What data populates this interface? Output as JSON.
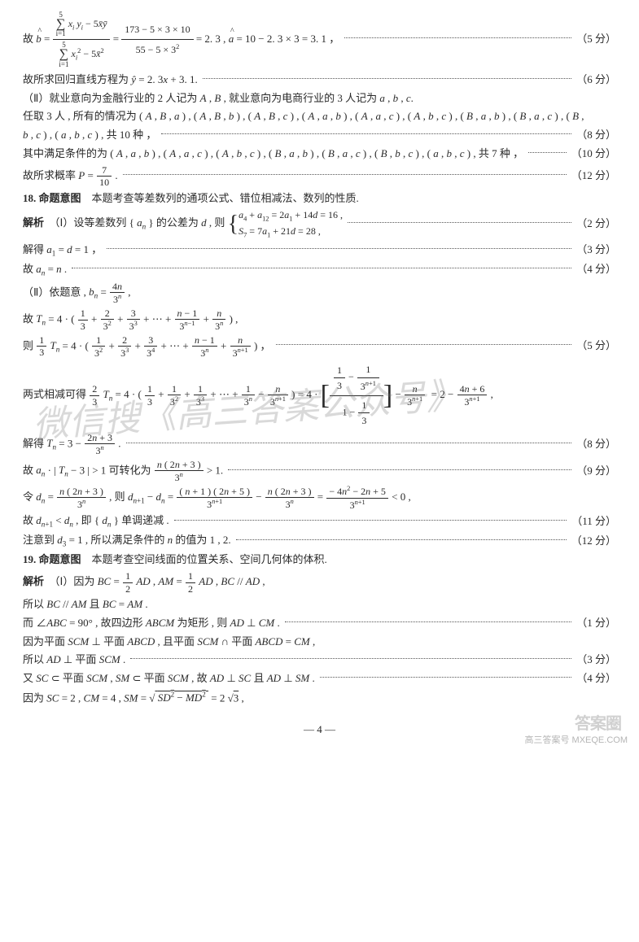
{
  "lines": [
    {
      "type": "formula_big",
      "score": "（5 分）",
      "left": "故 <span class='i hat'>b</span> = ",
      "numerator_l": "<span class='sum-block'><span class='top'>5</span><span class='sig'>∑</span><span class='bot'>i=1</span></span> <span class='i'>x<sub>i</sub> y<sub>i</sub></span> − 5<span class='i'>x̄ȳ</span>",
      "denominator_l": "<span class='sum-block'><span class='top'>5</span><span class='sig'>∑</span><span class='bot'>i=1</span></span> <span class='i'>x<sub>i</sub></span><sup>2</sup> − 5<span class='i'>x̄</span><sup>2</sup>",
      "mid": " = ",
      "numerator_r": "173 − 5 × 3 × 10",
      "denominator_r": "55 − 5 × 3<sup>2</sup>",
      "right": " = 2. 3 , <span class='i hat'>a</span> = 10 − 2. 3 × 3 = 3. 1 ，"
    },
    {
      "text": "故所求回归直线方程为 <span class='i'>ŷ</span> = 2. 3<span class='i'>x</span> + 3. 1.",
      "score": "（6 分）"
    },
    {
      "text": "（Ⅱ）就业意向为金融行业的 2 人记为 <span class='i'>A</span> , <span class='i'>B</span> , 就业意向为电商行业的 3 人记为 <span class='i'>a</span> , <span class='i'>b</span> , <span class='i'>c</span>."
    },
    {
      "text": "任取 3 人 , 所有的情况为 ( <span class='i'>A</span> , <span class='i'>B</span> , <span class='i'>a</span> ) , ( <span class='i'>A</span> , <span class='i'>B</span> , <span class='i'>b</span> ) , ( <span class='i'>A</span> , <span class='i'>B</span> , <span class='i'>c</span> ) , ( <span class='i'>A</span> , <span class='i'>a</span> , <span class='i'>b</span> ) , ( <span class='i'>A</span> , <span class='i'>a</span> , <span class='i'>c</span> ) , ( <span class='i'>A</span> , <span class='i'>b</span> , <span class='i'>c</span> ) , ( <span class='i'>B</span> , <span class='i'>a</span> , <span class='i'>b</span> ) , ( <span class='i'>B</span> , <span class='i'>a</span> , <span class='i'>c</span> ) , ( <span class='i'>B</span> ,"
    },
    {
      "text": "<span class='i'>b</span> , <span class='i'>c</span> ) , ( <span class='i'>a</span> , <span class='i'>b</span> , <span class='i'>c</span> ) , 共 10 种 ，",
      "score": "（8 分）"
    },
    {
      "text": "其中满足条件的为 ( <span class='i'>A</span> , <span class='i'>a</span> , <span class='i'>b</span> ) , ( <span class='i'>A</span> , <span class='i'>a</span> , <span class='i'>c</span> ) , ( <span class='i'>A</span> , <span class='i'>b</span> , <span class='i'>c</span> ) , ( <span class='i'>B</span> , <span class='i'>a</span> , <span class='i'>b</span> ) , ( <span class='i'>B</span> , <span class='i'>a</span> , <span class='i'>c</span> ) , ( <span class='i'>B</span> , <span class='i'>b</span> , <span class='i'>c</span> ) , ( <span class='i'>a</span> , <span class='i'>b</span> , <span class='i'>c</span> ) , 共 7 种 ，",
      "score": "（10 分）"
    },
    {
      "text": "故所求概率 <span class='i'>P</span> = <span class='frac'><span class='num'>7</span><span class='den'>10</span></span> .",
      "score": "（12 分）"
    },
    {
      "text": "<span class='qnum'>18. 命题意图</span>　本题考查等差数列的通项公式、错位相减法、数列的性质."
    },
    {
      "type": "cases",
      "pre": "<span class='bold'>解析</span>　（Ⅰ）设等差数列 { <span class='i'>a<sub>n</sub></span> } 的公差为 <span class='i'>d</span> , 则",
      "case1": "<span class='i'>a</span><sub>4</sub> + <span class='i'>a</span><sub>12</sub> = 2<span class='i'>a</span><sub>1</sub> + 14<span class='i'>d</span> = 16 ,",
      "case2": "<span class='i'>S</span><sub>7</sub> = 7<span class='i'>a</span><sub>1</sub> + 21<span class='i'>d</span> = 28 ,",
      "score": "（2 分）"
    },
    {
      "text": "解得 <span class='i'>a</span><sub>1</sub> = <span class='i'>d</span> = 1 ，",
      "score": "（3 分）"
    },
    {
      "text": "故 <span class='i'>a<sub>n</sub></span> = <span class='i'>n</span> .",
      "score": "（4 分）"
    },
    {
      "text": "（Ⅱ）依题意 , <span class='i'>b<sub>n</sub></span> = <span class='frac'><span class='num'>4<span class='i'>n</span></span><span class='den'>3<sup><span class='i'>n</span></sup></span></span> ,"
    },
    {
      "text": "故 <span class='i'>T<sub>n</sub></span> = 4 · ( <span class='frac'><span class='num'>1</span><span class='den'>3</span></span> + <span class='frac'><span class='num'>2</span><span class='den'>3<sup>2</sup></span></span> + <span class='frac'><span class='num'>3</span><span class='den'>3<sup>3</sup></span></span> + ⋯ + <span class='frac'><span class='num'><span class='i'>n</span> − 1</span><span class='den'>3<sup><span class='i'>n</span>−1</sup></span></span> + <span class='frac'><span class='num'><span class='i'>n</span></span><span class='den'>3<sup><span class='i'>n</span></sup></span></span> ) ,"
    },
    {
      "text": "则 <span class='frac'><span class='num'>1</span><span class='den'>3</span></span> <span class='i'>T<sub>n</sub></span> = 4 · ( <span class='frac'><span class='num'>1</span><span class='den'>3<sup>2</sup></span></span> + <span class='frac'><span class='num'>2</span><span class='den'>3<sup>3</sup></span></span> + <span class='frac'><span class='num'>3</span><span class='den'>3<sup>4</sup></span></span> + ⋯ + <span class='frac'><span class='num'><span class='i'>n</span> − 1</span><span class='den'>3<sup><span class='i'>n</span></sup></span></span> + <span class='frac'><span class='num'><span class='i'>n</span></span><span class='den'>3<sup><span class='i'>n</span>+1</sup></span></span> ) ，",
      "score": "（5 分）"
    },
    {
      "type": "bigbracket",
      "pre": "两式相减可得 <span class='frac'><span class='num'>2</span><span class='den'>3</span></span> <span class='i'>T<sub>n</sub></span> = 4 · ( <span class='frac'><span class='num'>1</span><span class='den'>3</span></span> + <span class='frac'><span class='num'>1</span><span class='den'>3<sup>2</sup></span></span> + <span class='frac'><span class='num'>1</span><span class='den'>3<sup>3</sup></span></span> + ⋯ + <span class='frac'><span class='num'>1</span><span class='den'>3<sup><span class='i'>n</span></sup></span></span> − <span class='frac'><span class='num'><span class='i'>n</span></span><span class='den'>3<sup><span class='i'>n</span>+1</sup></span></span> ) = 4 · ",
      "inner_num": "<span class='frac'><span class='num'>1</span><span class='den'>3</span></span> − <span class='frac'><span class='num'>1</span><span class='den'>3<sup><span class='i'>n</span>+1</sup></span></span>",
      "inner_den": "1 − <span class='frac'><span class='num'>1</span><span class='den'>3</span></span>",
      "post": " − <span class='frac'><span class='num'><span class='i'>n</span></span><span class='den'>3<sup><span class='i'>n</span>+1</sup></span></span> &nbsp;= 2 − <span class='frac'><span class='num'>4<span class='i'>n</span> + 6</span><span class='den'>3<sup><span class='i'>n</span>+1</sup></span></span> ,"
    },
    {
      "text": "解得 <span class='i'>T<sub>n</sub></span> = 3 − <span class='frac'><span class='num'>2<span class='i'>n</span> + 3</span><span class='den'>3<sup><span class='i'>n</span></sup></span></span> .",
      "score": "（8 分）"
    },
    {
      "text": "故 <span class='i'>a<sub>n</sub></span> · | <span class='i'>T<sub>n</sub></span> − 3 | > 1 可转化为 <span class='frac'><span class='num'><span class='i'>n</span> ( 2<span class='i'>n</span> + 3 )</span><span class='den'>3<sup><span class='i'>n</span></sup></span></span> > 1.",
      "score": "（9 分）"
    },
    {
      "text": "令 <span class='i'>d<sub>n</sub></span> = <span class='frac'><span class='num'><span class='i'>n</span> ( 2<span class='i'>n</span> + 3 )</span><span class='den'>3<sup><span class='i'>n</span></sup></span></span> , 则 <span class='i'>d</span><sub><span class='i'>n</span>+1</sub> − <span class='i'>d<sub>n</sub></span> = <span class='frac'><span class='num'>( <span class='i'>n</span> + 1 ) ( 2<span class='i'>n</span> + 5 )</span><span class='den'>3<sup><span class='i'>n</span>+1</sup></span></span> − <span class='frac'><span class='num'><span class='i'>n</span> ( 2<span class='i'>n</span> + 3 )</span><span class='den'>3<sup><span class='i'>n</span></sup></span></span> = <span class='frac'><span class='num'>− 4<span class='i'>n</span><sup>2</sup> − 2<span class='i'>n</span> + 5</span><span class='den'>3<sup><span class='i'>n</span>+1</sup></span></span> &lt; 0 ,"
    },
    {
      "text": "故 <span class='i'>d</span><sub><span class='i'>n</span>+1</sub> &lt; <span class='i'>d<sub>n</sub></span> , 即 { <span class='i'>d<sub>n</sub></span> } 单调递减 .",
      "score": "（11 分）"
    },
    {
      "text": "注意到 <span class='i'>d</span><sub>3</sub> = 1 , 所以满足条件的 <span class='i'>n</span> 的值为 1 , 2.",
      "score": "（12 分）"
    },
    {
      "text": "<span class='qnum'>19. 命题意图</span>　本题考查空间线面的位置关系、空间几何体的体积."
    },
    {
      "text": "<span class='bold'>解析</span>　（Ⅰ）因为 <span class='i'>BC</span> = <span class='frac'><span class='num'>1</span><span class='den'>2</span></span> <span class='i'>AD</span> , <span class='i'>AM</span> = <span class='frac'><span class='num'>1</span><span class='den'>2</span></span> <span class='i'>AD</span> , <span class='i'>BC</span> // <span class='i'>AD</span> ,"
    },
    {
      "text": "所以 <span class='i'>BC</span> // <span class='i'>AM</span> 且 <span class='i'>BC</span> = <span class='i'>AM</span> ."
    },
    {
      "text": "而 ∠<span class='i'>ABC</span> = 90° , 故四边形 <span class='i'>ABCM</span> 为矩形 , 则 <span class='i'>AD</span> ⊥ <span class='i'>CM</span> .",
      "score": "（1 分）"
    },
    {
      "text": "因为平面 <span class='i'>SCM</span> ⊥ 平面 <span class='i'>ABCD</span> , 且平面 <span class='i'>SCM</span> ∩ 平面 <span class='i'>ABCD</span> = <span class='i'>CM</span> ,"
    },
    {
      "text": "所以 <span class='i'>AD</span> ⊥ 平面 <span class='i'>SCM</span> .",
      "score": "（3 分）"
    },
    {
      "text": "又 <span class='i'>SC</span> ⊂ 平面 <span class='i'>SCM</span> , <span class='i'>SM</span> ⊂ 平面 <span class='i'>SCM</span> , 故 <span class='i'>AD</span> ⊥ <span class='i'>SC</span> 且 <span class='i'>AD</span> ⊥ <span class='i'>SM</span> .",
      "score": "（4 分）"
    },
    {
      "text": "因为 <span class='i'>SC</span> = 2 , <span class='i'>CM</span> = 4 , <span class='i'>SM</span> = √<span style='text-decoration:overline'>&nbsp;<span class='i'>SD</span><sup>2</sup> − <span class='i'>MD</span><sup>2</sup>&nbsp;</span> = 2 √<span style='text-decoration:overline'>3</span> ,"
    }
  ],
  "page_num": "— 4 —",
  "watermark_main": "微信搜《高三答案公众号》",
  "watermark_logo": "答案圈",
  "watermark_corner": "高三答案号\nMXEQE.COM"
}
